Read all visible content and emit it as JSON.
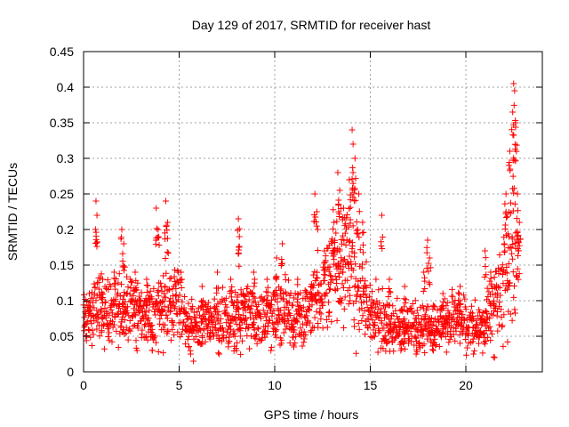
{
  "chart_data": {
    "type": "scatter",
    "title": "Day 129 of 2017, SRMTID for receiver hast",
    "xlabel": "GPS time / hours",
    "ylabel": "SRMTID / TECUs",
    "xlim": [
      0,
      24
    ],
    "ylim": [
      0,
      0.45
    ],
    "x_ticks": [
      0,
      5,
      10,
      15,
      20
    ],
    "x_tick_labels": [
      "0",
      "5",
      "10",
      "15",
      "20"
    ],
    "y_ticks": [
      0,
      0.05,
      0.1,
      0.15,
      0.2,
      0.25,
      0.3,
      0.35,
      0.4,
      0.45
    ],
    "y_tick_labels": [
      "0",
      "0.05",
      "0.1",
      "0.15",
      "0.2",
      "0.25",
      "0.3",
      "0.35",
      "0.4",
      "0.45"
    ],
    "grid": true,
    "marker": "+",
    "color": "#ff0000",
    "profile": [
      [
        0.0,
        0.075
      ],
      [
        0.3,
        0.07
      ],
      [
        0.6,
        0.09
      ],
      [
        1.0,
        0.085
      ],
      [
        1.5,
        0.09
      ],
      [
        2.0,
        0.085
      ],
      [
        2.5,
        0.085
      ],
      [
        3.0,
        0.085
      ],
      [
        3.5,
        0.07
      ],
      [
        4.0,
        0.09
      ],
      [
        4.5,
        0.095
      ],
      [
        5.0,
        0.09
      ],
      [
        5.5,
        0.065
      ],
      [
        6.0,
        0.06
      ],
      [
        6.5,
        0.065
      ],
      [
        7.0,
        0.07
      ],
      [
        7.5,
        0.07
      ],
      [
        8.0,
        0.075
      ],
      [
        8.5,
        0.08
      ],
      [
        9.0,
        0.075
      ],
      [
        9.5,
        0.075
      ],
      [
        10.0,
        0.08
      ],
      [
        10.5,
        0.085
      ],
      [
        11.0,
        0.075
      ],
      [
        11.5,
        0.085
      ],
      [
        12.0,
        0.09
      ],
      [
        12.5,
        0.11
      ],
      [
        13.0,
        0.14
      ],
      [
        13.5,
        0.14
      ],
      [
        14.0,
        0.15
      ],
      [
        14.5,
        0.12
      ],
      [
        15.0,
        0.08
      ],
      [
        15.5,
        0.07
      ],
      [
        16.0,
        0.065
      ],
      [
        16.5,
        0.06
      ],
      [
        17.0,
        0.06
      ],
      [
        17.5,
        0.065
      ],
      [
        18.0,
        0.07
      ],
      [
        18.5,
        0.065
      ],
      [
        19.0,
        0.07
      ],
      [
        19.5,
        0.075
      ],
      [
        20.0,
        0.065
      ],
      [
        20.5,
        0.06
      ],
      [
        21.0,
        0.065
      ],
      [
        21.5,
        0.09
      ],
      [
        22.0,
        0.13
      ],
      [
        22.5,
        0.18
      ],
      [
        22.8,
        0.14
      ]
    ],
    "peaks": [
      [
        0.3,
        0.11
      ],
      [
        0.65,
        0.24
      ],
      [
        0.7,
        0.22
      ],
      [
        1.0,
        0.13
      ],
      [
        1.6,
        0.14
      ],
      [
        2.0,
        0.2
      ],
      [
        2.1,
        0.18
      ],
      [
        2.7,
        0.14
      ],
      [
        3.3,
        0.13
      ],
      [
        3.8,
        0.23
      ],
      [
        3.9,
        0.2
      ],
      [
        4.3,
        0.24
      ],
      [
        4.4,
        0.21
      ],
      [
        5.1,
        0.14
      ],
      [
        6.2,
        0.12
      ],
      [
        7.0,
        0.14
      ],
      [
        7.7,
        0.13
      ],
      [
        8.1,
        0.215
      ],
      [
        8.15,
        0.19
      ],
      [
        8.9,
        0.14
      ],
      [
        9.6,
        0.13
      ],
      [
        10.1,
        0.16
      ],
      [
        10.4,
        0.18
      ],
      [
        11.2,
        0.13
      ],
      [
        12.1,
        0.25
      ],
      [
        12.2,
        0.225
      ],
      [
        12.6,
        0.17
      ],
      [
        13.1,
        0.21
      ],
      [
        13.3,
        0.28
      ],
      [
        13.4,
        0.255
      ],
      [
        13.6,
        0.23
      ],
      [
        13.9,
        0.27
      ],
      [
        14.05,
        0.34
      ],
      [
        14.1,
        0.32
      ],
      [
        14.2,
        0.3
      ],
      [
        14.4,
        0.25
      ],
      [
        14.6,
        0.21
      ],
      [
        15.6,
        0.22
      ],
      [
        16.0,
        0.13
      ],
      [
        16.8,
        0.12
      ],
      [
        17.8,
        0.14
      ],
      [
        18.0,
        0.185
      ],
      [
        18.1,
        0.16
      ],
      [
        18.8,
        0.11
      ],
      [
        19.7,
        0.12
      ],
      [
        21.0,
        0.17
      ],
      [
        21.3,
        0.14
      ],
      [
        22.1,
        0.25
      ],
      [
        22.3,
        0.31
      ],
      [
        22.45,
        0.365
      ],
      [
        22.5,
        0.405
      ],
      [
        22.55,
        0.395
      ],
      [
        22.6,
        0.35
      ],
      [
        22.7,
        0.25
      ],
      [
        22.8,
        0.21
      ]
    ],
    "dips": [
      [
        2.8,
        0.03
      ],
      [
        3.6,
        0.03
      ],
      [
        5.5,
        0.035
      ],
      [
        5.6,
        0.025
      ],
      [
        7.1,
        0.025
      ],
      [
        8.0,
        0.03
      ],
      [
        9.8,
        0.03
      ],
      [
        11.0,
        0.035
      ],
      [
        16.6,
        0.03
      ],
      [
        17.4,
        0.025
      ],
      [
        18.3,
        0.03
      ],
      [
        20.4,
        0.025
      ],
      [
        21.5,
        0.02
      ]
    ]
  }
}
